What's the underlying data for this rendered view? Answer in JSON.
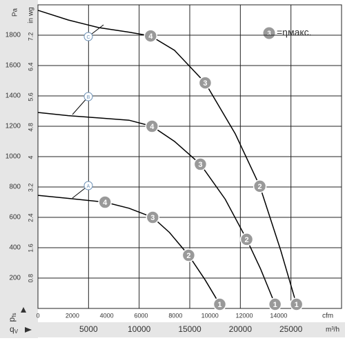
{
  "chart_data": {
    "type": "line",
    "y_label": "p",
    "y_label_sub": "fs",
    "y_unit": "Pa",
    "y2_unit": "in wg",
    "x_label": "q",
    "x_label_sub": "V",
    "x_unit": "m³/h",
    "x2_unit": "cfm",
    "xlim": [
      0,
      30000
    ],
    "xticks": [
      5000,
      10000,
      15000,
      20000,
      25000
    ],
    "x2lim": [
      0,
      17657
    ],
    "x2ticks": [
      0,
      2000,
      4000,
      6000,
      8000,
      10000,
      12000,
      14000
    ],
    "ylim": [
      0,
      2000
    ],
    "yticks": [
      200,
      400,
      600,
      800,
      1000,
      1200,
      1400,
      1600,
      1800
    ],
    "y2lim": [
      0,
      8.04
    ],
    "y2ticks": [
      0.8,
      1.6,
      2.4,
      3.2,
      4.0,
      4.8,
      5.6,
      6.4,
      7.2
    ],
    "grid": true,
    "legend": {
      "marker": "3",
      "text": "=ηмакс."
    },
    "series": [
      {
        "name": "C",
        "color": "#000000",
        "x": [
          0,
          3000,
          6000,
          9000,
          11134,
          13500,
          16530,
          19500,
          21926,
          24000,
          25546
        ],
        "values": [
          1964,
          1900,
          1850,
          1820,
          1795,
          1700,
          1486,
          1150,
          805,
          380,
          27
        ],
        "points": {
          "x": [
            11134,
            16530,
            21926,
            25546
          ],
          "values": [
            1795,
            1486,
            805,
            27
          ],
          "labels": [
            "4",
            "3",
            "2",
            "1"
          ]
        }
      },
      {
        "name": "B",
        "color": "#000000",
        "x": [
          0,
          3000,
          6000,
          9000,
          11270,
          13500,
          16052,
          18500,
          20628,
          22000,
          23429
        ],
        "values": [
          1291,
          1270,
          1255,
          1240,
          1200,
          1100,
          950,
          720,
          455,
          260,
          27
        ],
        "points": {
          "x": [
            11270,
            16052,
            20628,
            23429
          ],
          "values": [
            1200,
            950,
            455,
            27
          ],
          "labels": [
            "4",
            "3",
            "2",
            "1"
          ]
        }
      },
      {
        "name": "A",
        "color": "#000000",
        "x": [
          0,
          3000,
          6626,
          9000,
          11339,
          13000,
          14891,
          16500,
          17965
        ],
        "values": [
          745,
          725,
          700,
          660,
          600,
          500,
          350,
          190,
          27
        ],
        "points": {
          "x": [
            6626,
            11339,
            14891,
            17965
          ],
          "values": [
            700,
            600,
            350,
            27
          ],
          "labels": [
            "4",
            "3",
            "2",
            "1"
          ]
        }
      }
    ]
  }
}
